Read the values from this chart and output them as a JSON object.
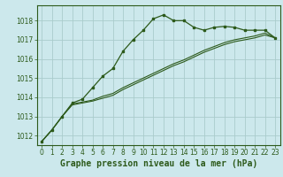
{
  "title": "Graphe pression niveau de la mer (hPa)",
  "bg_color": "#cce8ec",
  "grid_color": "#aacccc",
  "line_color": "#2d5a1b",
  "border_color": "#2d5a1b",
  "xlim": [
    -0.5,
    23.5
  ],
  "ylim": [
    1011.5,
    1018.8
  ],
  "yticks": [
    1012,
    1013,
    1014,
    1015,
    1016,
    1017,
    1018
  ],
  "xticks": [
    0,
    1,
    2,
    3,
    4,
    5,
    6,
    7,
    8,
    9,
    10,
    11,
    12,
    13,
    14,
    15,
    16,
    17,
    18,
    19,
    20,
    21,
    22,
    23
  ],
  "series1_x": [
    0,
    1,
    2,
    3,
    4,
    5,
    6,
    7,
    8,
    9,
    10,
    11,
    12,
    13,
    14,
    15,
    16,
    17,
    18,
    19,
    20,
    21,
    22,
    23
  ],
  "series1_y": [
    1011.7,
    1012.3,
    1013.0,
    1013.7,
    1013.9,
    1014.5,
    1015.1,
    1015.5,
    1016.4,
    1017.0,
    1017.5,
    1018.1,
    1018.3,
    1018.0,
    1018.0,
    1017.65,
    1017.5,
    1017.65,
    1017.7,
    1017.65,
    1017.5,
    1017.5,
    1017.5,
    1017.1
  ],
  "series2_x": [
    0,
    1,
    2,
    3,
    4,
    5,
    6,
    7,
    8,
    9,
    10,
    11,
    12,
    13,
    14,
    15,
    16,
    17,
    18,
    19,
    20,
    21,
    22,
    23
  ],
  "series2_y": [
    1011.7,
    1012.3,
    1013.0,
    1013.65,
    1013.75,
    1013.85,
    1014.05,
    1014.2,
    1014.5,
    1014.75,
    1015.0,
    1015.25,
    1015.5,
    1015.75,
    1015.95,
    1016.2,
    1016.45,
    1016.65,
    1016.85,
    1017.0,
    1017.1,
    1017.2,
    1017.35,
    1017.1
  ],
  "series3_x": [
    0,
    1,
    2,
    3,
    4,
    5,
    6,
    7,
    8,
    9,
    10,
    11,
    12,
    13,
    14,
    15,
    16,
    17,
    18,
    19,
    20,
    21,
    22,
    23
  ],
  "series3_y": [
    1011.7,
    1012.3,
    1013.0,
    1013.6,
    1013.7,
    1013.8,
    1013.95,
    1014.1,
    1014.4,
    1014.65,
    1014.9,
    1015.15,
    1015.4,
    1015.65,
    1015.85,
    1016.1,
    1016.35,
    1016.55,
    1016.75,
    1016.9,
    1017.0,
    1017.1,
    1017.25,
    1017.1
  ],
  "title_fontsize": 7,
  "tick_fontsize": 5.5
}
